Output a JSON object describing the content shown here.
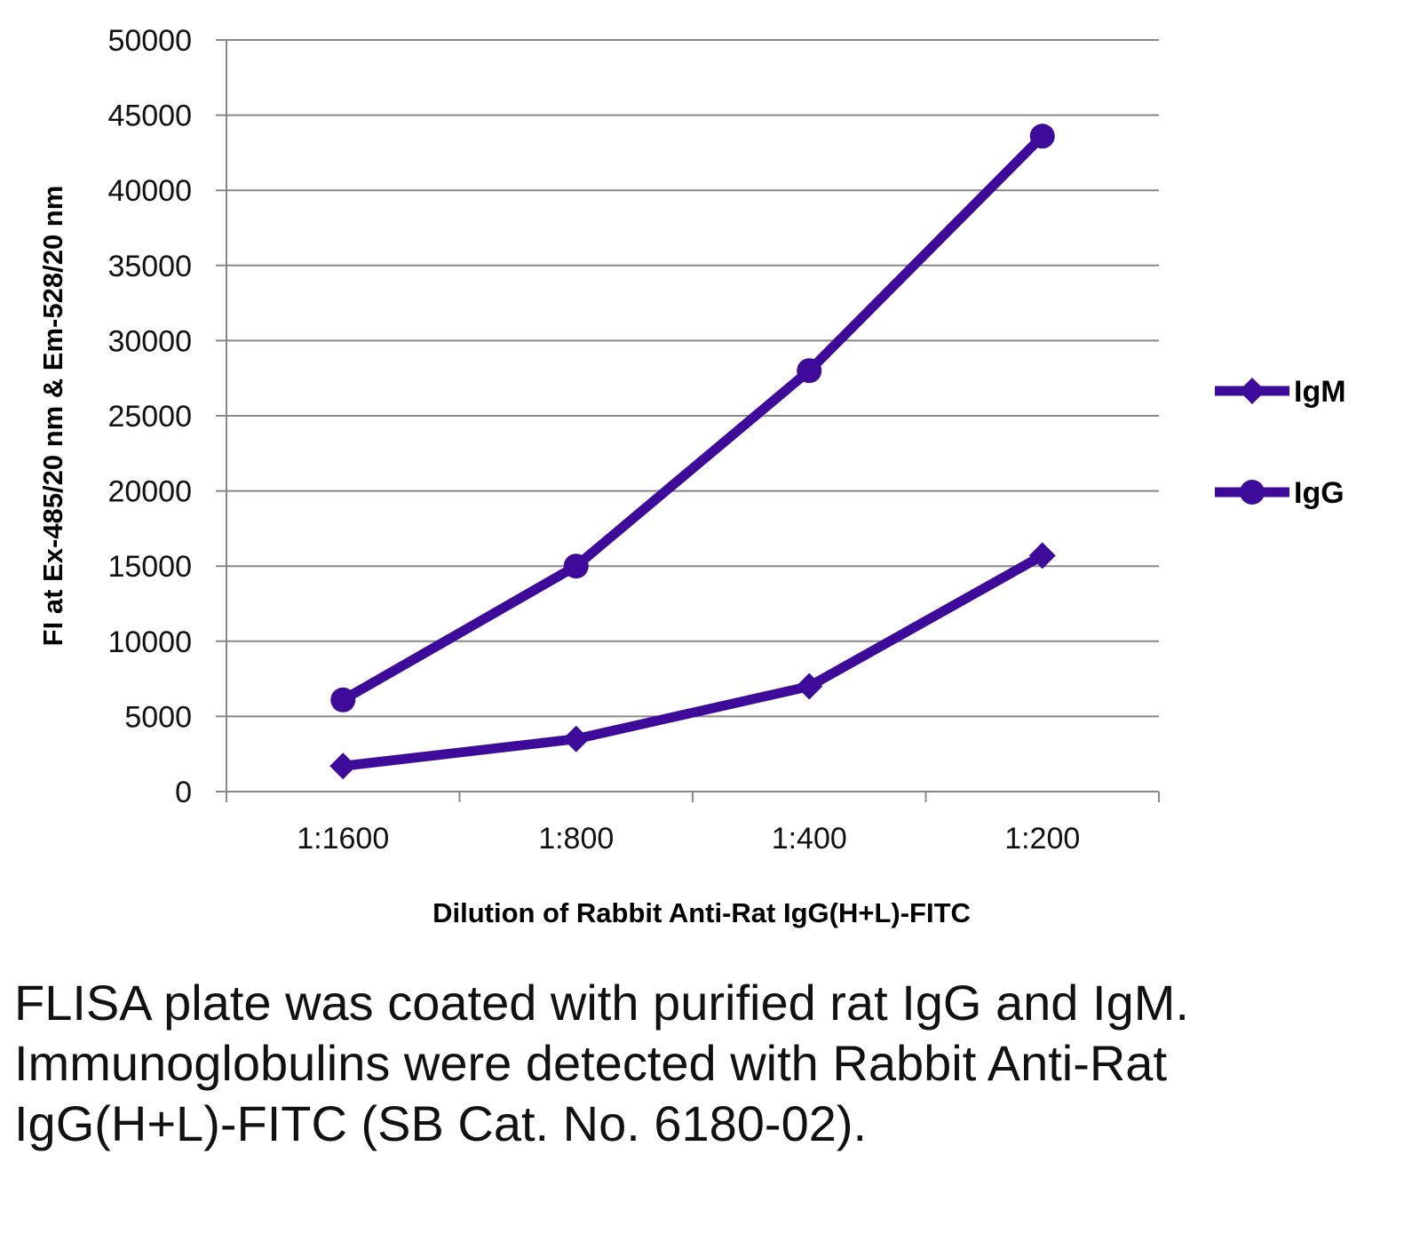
{
  "chart_data": {
    "type": "line",
    "title": "",
    "xlabel": "Dilution of Rabbit Anti-Rat IgG(H+L)-FITC",
    "ylabel": "FI at Ex-485/20 nm & Em-528/20 nm",
    "categories": [
      "1:1600",
      "1:800",
      "1:400",
      "1:200"
    ],
    "ylim": [
      0,
      50000
    ],
    "yticks": [
      0,
      5000,
      10000,
      15000,
      20000,
      25000,
      30000,
      35000,
      40000,
      45000,
      50000
    ],
    "grid": true,
    "legend_position": "right",
    "series": [
      {
        "name": "IgM",
        "marker": "diamond",
        "color": "#3d0a9a",
        "values": [
          1700,
          3500,
          7000,
          15700
        ]
      },
      {
        "name": "IgG",
        "marker": "circle",
        "color": "#3d0a9a",
        "values": [
          6100,
          15000,
          28000,
          43600
        ]
      }
    ]
  },
  "caption": "FLISA plate was coated with purified rat IgG and IgM.  Immunoglobulins were detected with Rabbit Anti-Rat IgG(H+L)-FITC (SB Cat. No. 6180-02)."
}
